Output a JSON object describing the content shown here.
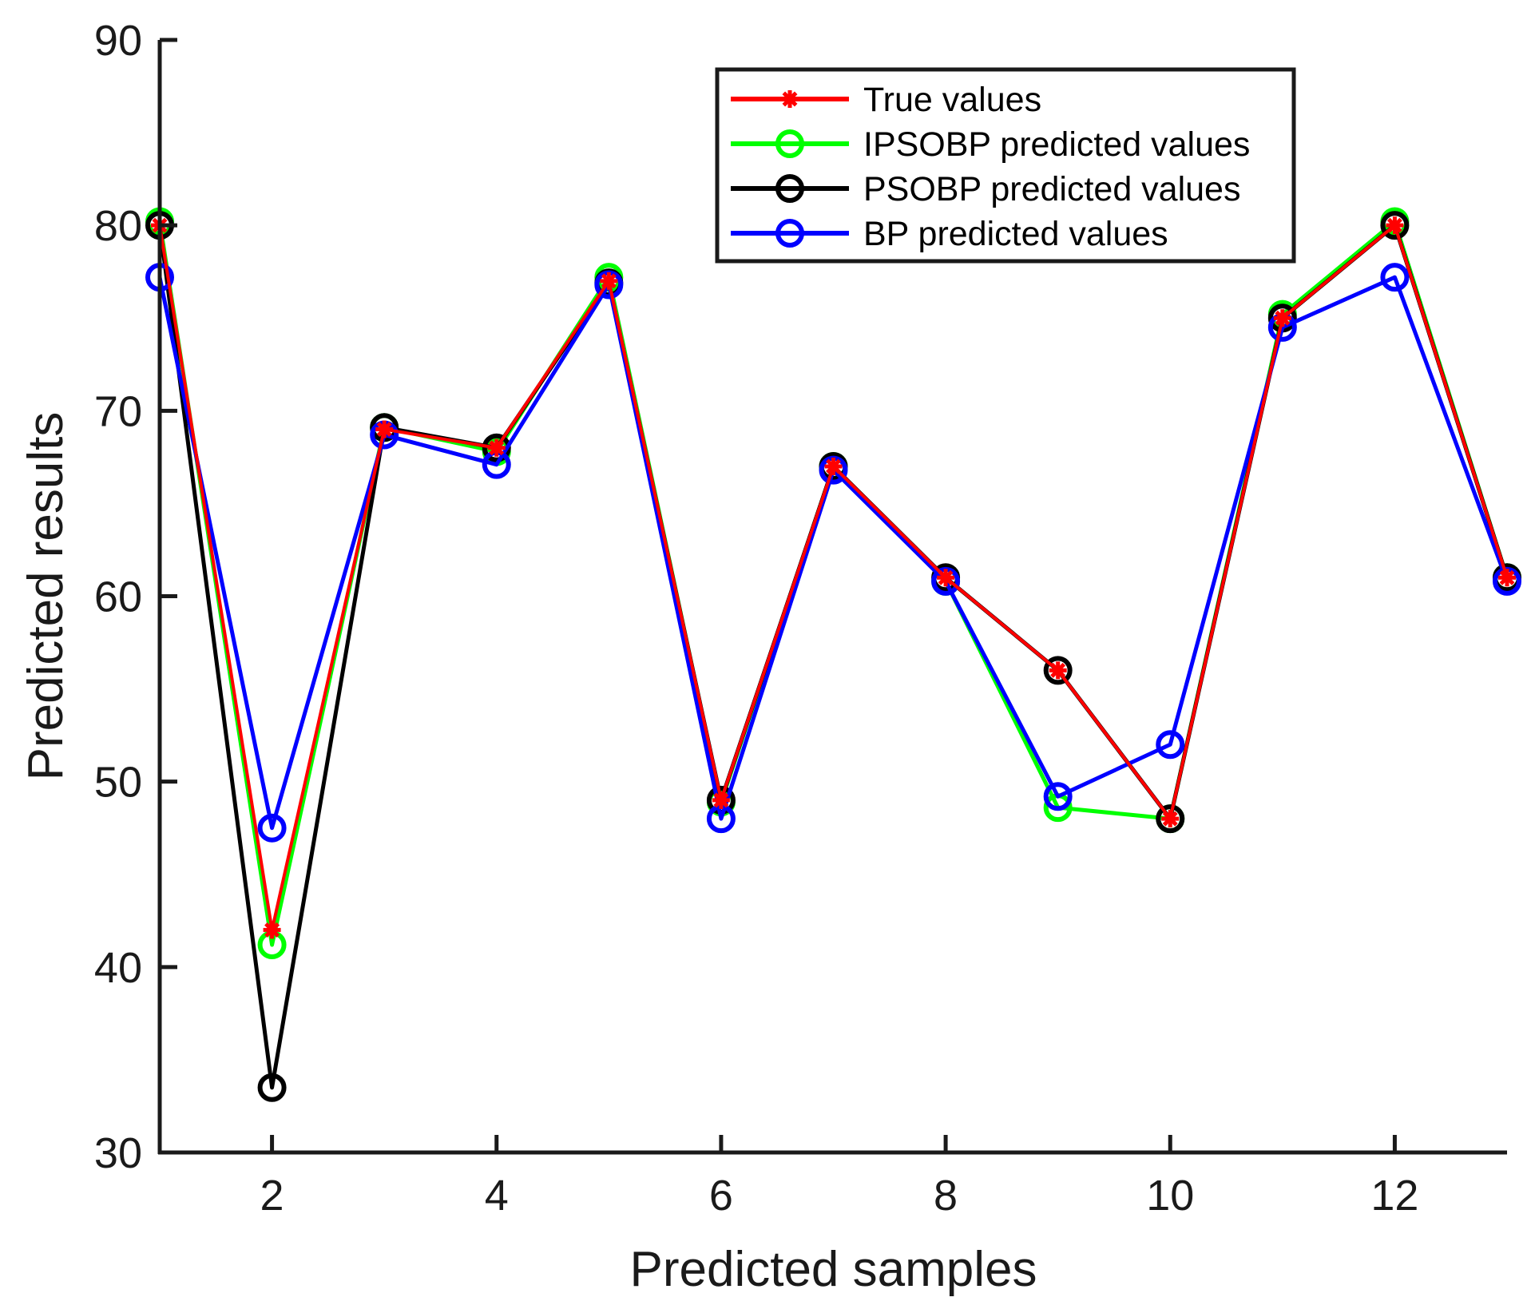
{
  "chart_data": {
    "type": "line",
    "title": "",
    "xlabel": "Predicted samples",
    "ylabel": "Predicted results",
    "xlim": [
      1,
      13
    ],
    "ylim": [
      30,
      90
    ],
    "x": [
      1,
      2,
      3,
      4,
      5,
      6,
      7,
      8,
      9,
      10,
      11,
      12,
      13
    ],
    "xticks": [
      "2",
      "4",
      "6",
      "8",
      "10",
      "12"
    ],
    "xtick_values": [
      2,
      4,
      6,
      8,
      10,
      12
    ],
    "yticks": [
      "30",
      "40",
      "50",
      "60",
      "70",
      "80",
      "90"
    ],
    "ytick_values": [
      30,
      40,
      50,
      60,
      70,
      80,
      90
    ],
    "grid": false,
    "legend_position": "top-right",
    "series": [
      {
        "name": "True values",
        "color": "#ff0000",
        "marker": "asterisk",
        "values": [
          80,
          42,
          69,
          68,
          77,
          49,
          67,
          61,
          56,
          48,
          75,
          80,
          61
        ]
      },
      {
        "name": "IPSOBP predicted values",
        "color": "#00ff00",
        "marker": "circle",
        "values": [
          80.2,
          41.2,
          69.1,
          67.8,
          77.2,
          48.9,
          67.0,
          60.8,
          48.6,
          48.0,
          75.2,
          80.2,
          61.0
        ]
      },
      {
        "name": "PSOBP predicted values",
        "color": "#000000",
        "marker": "circle",
        "values": [
          80,
          33.5,
          69.1,
          68.0,
          76.9,
          49.0,
          67.0,
          61.0,
          56.0,
          48.0,
          75.0,
          80.0,
          61.0
        ]
      },
      {
        "name": "BP predicted values",
        "color": "#0000ff",
        "marker": "circle",
        "values": [
          77.2,
          47.5,
          68.7,
          67.1,
          76.8,
          48.0,
          66.8,
          60.8,
          49.2,
          52.0,
          74.5,
          77.2,
          60.8
        ]
      }
    ]
  }
}
